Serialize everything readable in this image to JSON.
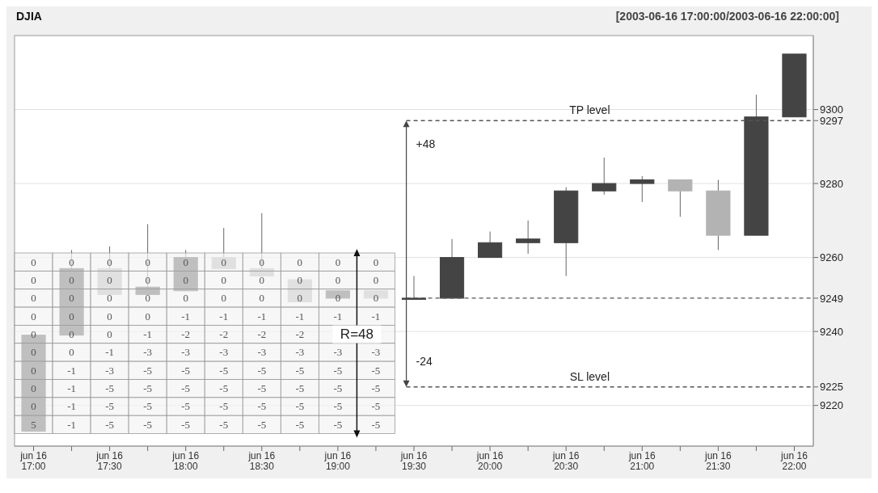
{
  "chart_data": [
    {
      "type": "candlestick",
      "title": "DJIA",
      "subtitle": "[2003-06-16 17:00:00/2003-06-16 22:00:00]",
      "categories": [
        "jun 16\n17:00",
        null,
        "jun 16\n17:30",
        null,
        "jun 16\n18:00",
        null,
        "jun 16\n18:30",
        null,
        "jun 16\n19:00",
        null,
        "jun 16\n19:30",
        null,
        "jun 16\n20:00",
        null,
        "jun 16\n20:30",
        null,
        "jun 16\n21:00",
        null,
        "jun 16\n21:30",
        null,
        "jun 16\n22:00"
      ],
      "ohlc": [
        [
          9213,
          9239,
          9213,
          9239
        ],
        [
          9239,
          9262,
          9239,
          9257
        ],
        [
          9257,
          9263,
          9250,
          9250
        ],
        [
          9250,
          9269,
          9250,
          9252
        ],
        [
          9251,
          9262,
          9251,
          9260
        ],
        [
          9260,
          9268,
          9257,
          9257
        ],
        [
          9257,
          9272,
          9255,
          9255
        ],
        [
          9254,
          9254,
          9248,
          9248
        ],
        [
          9249,
          9251,
          9249,
          9251
        ],
        [
          9251,
          9251,
          9249,
          9249
        ],
        [
          9249,
          9255,
          9249,
          9249
        ],
        [
          9249,
          9265,
          9249,
          9260
        ],
        [
          9260,
          9267,
          9260,
          9264
        ],
        [
          9264,
          9270,
          9261,
          9265
        ],
        [
          9264,
          9279,
          9255,
          9278
        ],
        [
          9278,
          9287,
          9277,
          9280
        ],
        [
          9280,
          9282,
          9275,
          9281
        ],
        [
          9281,
          9281,
          9271,
          9278
        ],
        [
          9278,
          9281,
          9262,
          9266
        ],
        [
          9266,
          9304,
          9266,
          9298
        ],
        [
          9298,
          9315,
          9298,
          9315
        ]
      ],
      "colors": [
        "#444444",
        "#444444",
        "#b3b3b3",
        "#444444",
        "#444444",
        "#b3b3b3",
        "#b3b3b3",
        "#b3b3b3",
        "#444444",
        "#b3b3b3",
        "#444444",
        "#444444",
        "#444444",
        "#444444",
        "#444444",
        "#444444",
        "#444444",
        "#b3b3b3",
        "#b3b3b3",
        "#444444",
        "#444444"
      ],
      "ylim": [
        9209,
        9320
      ],
      "yticks": [
        9220,
        9225,
        9240,
        9249,
        9260,
        9280,
        9297,
        9300
      ],
      "grid": "y",
      "ref_lines": [
        {
          "axis": "y",
          "value": 9297,
          "label": "TP level",
          "line_style": "dashed",
          "color": "#555555"
        },
        {
          "axis": "y",
          "value": 9249,
          "line_style": "dashed",
          "color": "#555555"
        },
        {
          "axis": "y",
          "value": 9225,
          "label": "SL level",
          "line_style": "dashed",
          "color": "#555555"
        }
      ],
      "annotations": [
        "+48",
        "-24"
      ]
    },
    {
      "type": "heatmap",
      "categories": [
        null,
        null,
        null,
        null,
        null,
        null,
        null,
        null,
        null,
        null
      ],
      "y_categories": [
        null,
        null,
        null,
        null,
        null,
        null,
        null,
        null,
        null,
        null
      ],
      "cells": [
        [
          0,
          0,
          0,
          0,
          0,
          0,
          0,
          0,
          0,
          0
        ],
        [
          0,
          0,
          0,
          0,
          0,
          0,
          0,
          0,
          0,
          0
        ],
        [
          0,
          0,
          0,
          0,
          0,
          0,
          0,
          0,
          0,
          0
        ],
        [
          0,
          0,
          0,
          0,
          -1,
          -1,
          -1,
          -1,
          -1,
          -1
        ],
        [
          0,
          0,
          0,
          -1,
          -2,
          -2,
          -2,
          -2,
          null,
          null
        ],
        [
          0,
          0,
          -1,
          -3,
          -3,
          -3,
          -3,
          -3,
          -3,
          -3
        ],
        [
          0,
          -1,
          -3,
          -5,
          -5,
          -5,
          -5,
          -5,
          -5,
          -5
        ],
        [
          0,
          -1,
          -5,
          -5,
          -5,
          -5,
          -5,
          -5,
          -5,
          -5
        ],
        [
          0,
          -1,
          -5,
          -5,
          -5,
          -5,
          -5,
          -5,
          -5,
          -5
        ],
        [
          5,
          -1,
          -5,
          -5,
          -5,
          -5,
          -5,
          -5,
          -5,
          -5
        ]
      ],
      "data_labels": true,
      "annotations": [
        "R=48"
      ]
    }
  ]
}
